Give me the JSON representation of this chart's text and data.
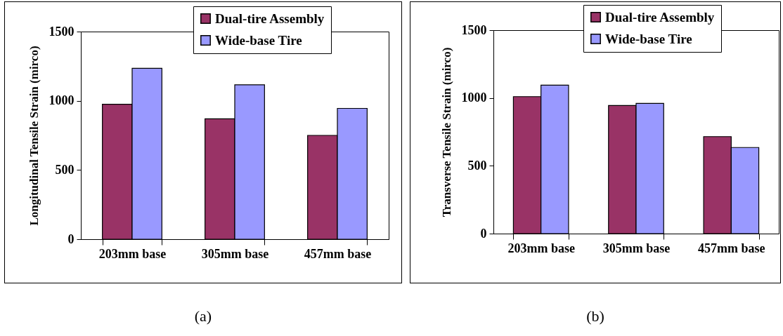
{
  "chart_data": [
    {
      "type": "bar",
      "ylabel": "Longitudinal Tensile Strain (mirco)",
      "categories": [
        "203mm base",
        "305mm base",
        "457mm base"
      ],
      "series": [
        {
          "name": "Dual-tire Assembly",
          "color": "#993366",
          "values": [
            975,
            870,
            750
          ]
        },
        {
          "name": "Wide-base Tire",
          "color": "#9999ff",
          "values": [
            1235,
            1115,
            945
          ]
        }
      ],
      "ylim": [
        0,
        1500
      ],
      "yticks": [
        0,
        500,
        1000,
        1500
      ],
      "grid": false,
      "legend": "top right",
      "annotations": [
        "(a)"
      ]
    },
    {
      "type": "bar",
      "ylabel": "Transverse Tensile Strain (mirco)",
      "categories": [
        "203mm base",
        "305mm base",
        "457mm base"
      ],
      "series": [
        {
          "name": "Dual-tire Assembly",
          "color": "#993366",
          "values": [
            1010,
            945,
            715
          ]
        },
        {
          "name": "Wide-base Tire",
          "color": "#9999ff",
          "values": [
            1095,
            960,
            635
          ]
        }
      ],
      "ylim": [
        0,
        1500
      ],
      "yticks": [
        0,
        500,
        1000,
        1500
      ],
      "grid": false,
      "legend": "top right",
      "annotations": [
        "(b)"
      ]
    }
  ]
}
